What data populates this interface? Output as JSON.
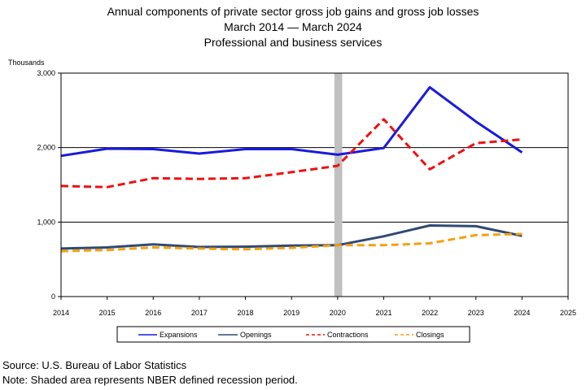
{
  "title_lines": [
    "Annual components of private sector gross job gains and gross job losses",
    "March 2014 — March 2024",
    "Professional and business services"
  ],
  "footnotes": {
    "source": "Source: U.S. Bureau of Labor Statistics",
    "note": "Note: Shaded area represents NBER defined recession period."
  },
  "chart_data": {
    "type": "line",
    "title": "Annual components of private sector gross job gains and gross job losses",
    "ylabel": "Thousands",
    "xlabel": "",
    "xlim": [
      2014,
      2025
    ],
    "ylim": [
      0,
      3000
    ],
    "x_ticks": [
      2014,
      2015,
      2016,
      2017,
      2018,
      2019,
      2020,
      2021,
      2022,
      2023,
      2024,
      2025
    ],
    "y_ticks": [
      0,
      1000,
      2000,
      3000
    ],
    "y_tick_labels": [
      "0",
      "1,000",
      "2,000",
      "3,000"
    ],
    "gridlines_y": [
      1000,
      2000
    ],
    "grid": true,
    "legend_position": "bottom",
    "recession_shading": {
      "from": 2019.93,
      "to": 2020.1,
      "color": "#c0c0c0"
    },
    "x": [
      2014,
      2015,
      2016,
      2017,
      2018,
      2019,
      2020,
      2021,
      2022,
      2023,
      2024
    ],
    "series": [
      {
        "name": "Expansions",
        "color": "#1a1adc",
        "dash": "solid",
        "values": [
          1890,
          1985,
          1980,
          1920,
          1980,
          1980,
          1905,
          1995,
          2810,
          2350,
          1935
        ]
      },
      {
        "name": "Openings",
        "color": "#2f4a72",
        "dash": "solid",
        "values": [
          645,
          660,
          700,
          665,
          670,
          685,
          690,
          810,
          955,
          945,
          815
        ]
      },
      {
        "name": "Contractions",
        "color": "#ee1111",
        "dash": "dashed",
        "values": [
          1485,
          1470,
          1590,
          1580,
          1590,
          1670,
          1755,
          2380,
          1710,
          2060,
          2110
        ]
      },
      {
        "name": "Closings",
        "color": "#f5a00f",
        "dash": "dashed",
        "values": [
          610,
          625,
          660,
          645,
          635,
          655,
          690,
          690,
          715,
          825,
          840
        ]
      }
    ]
  }
}
